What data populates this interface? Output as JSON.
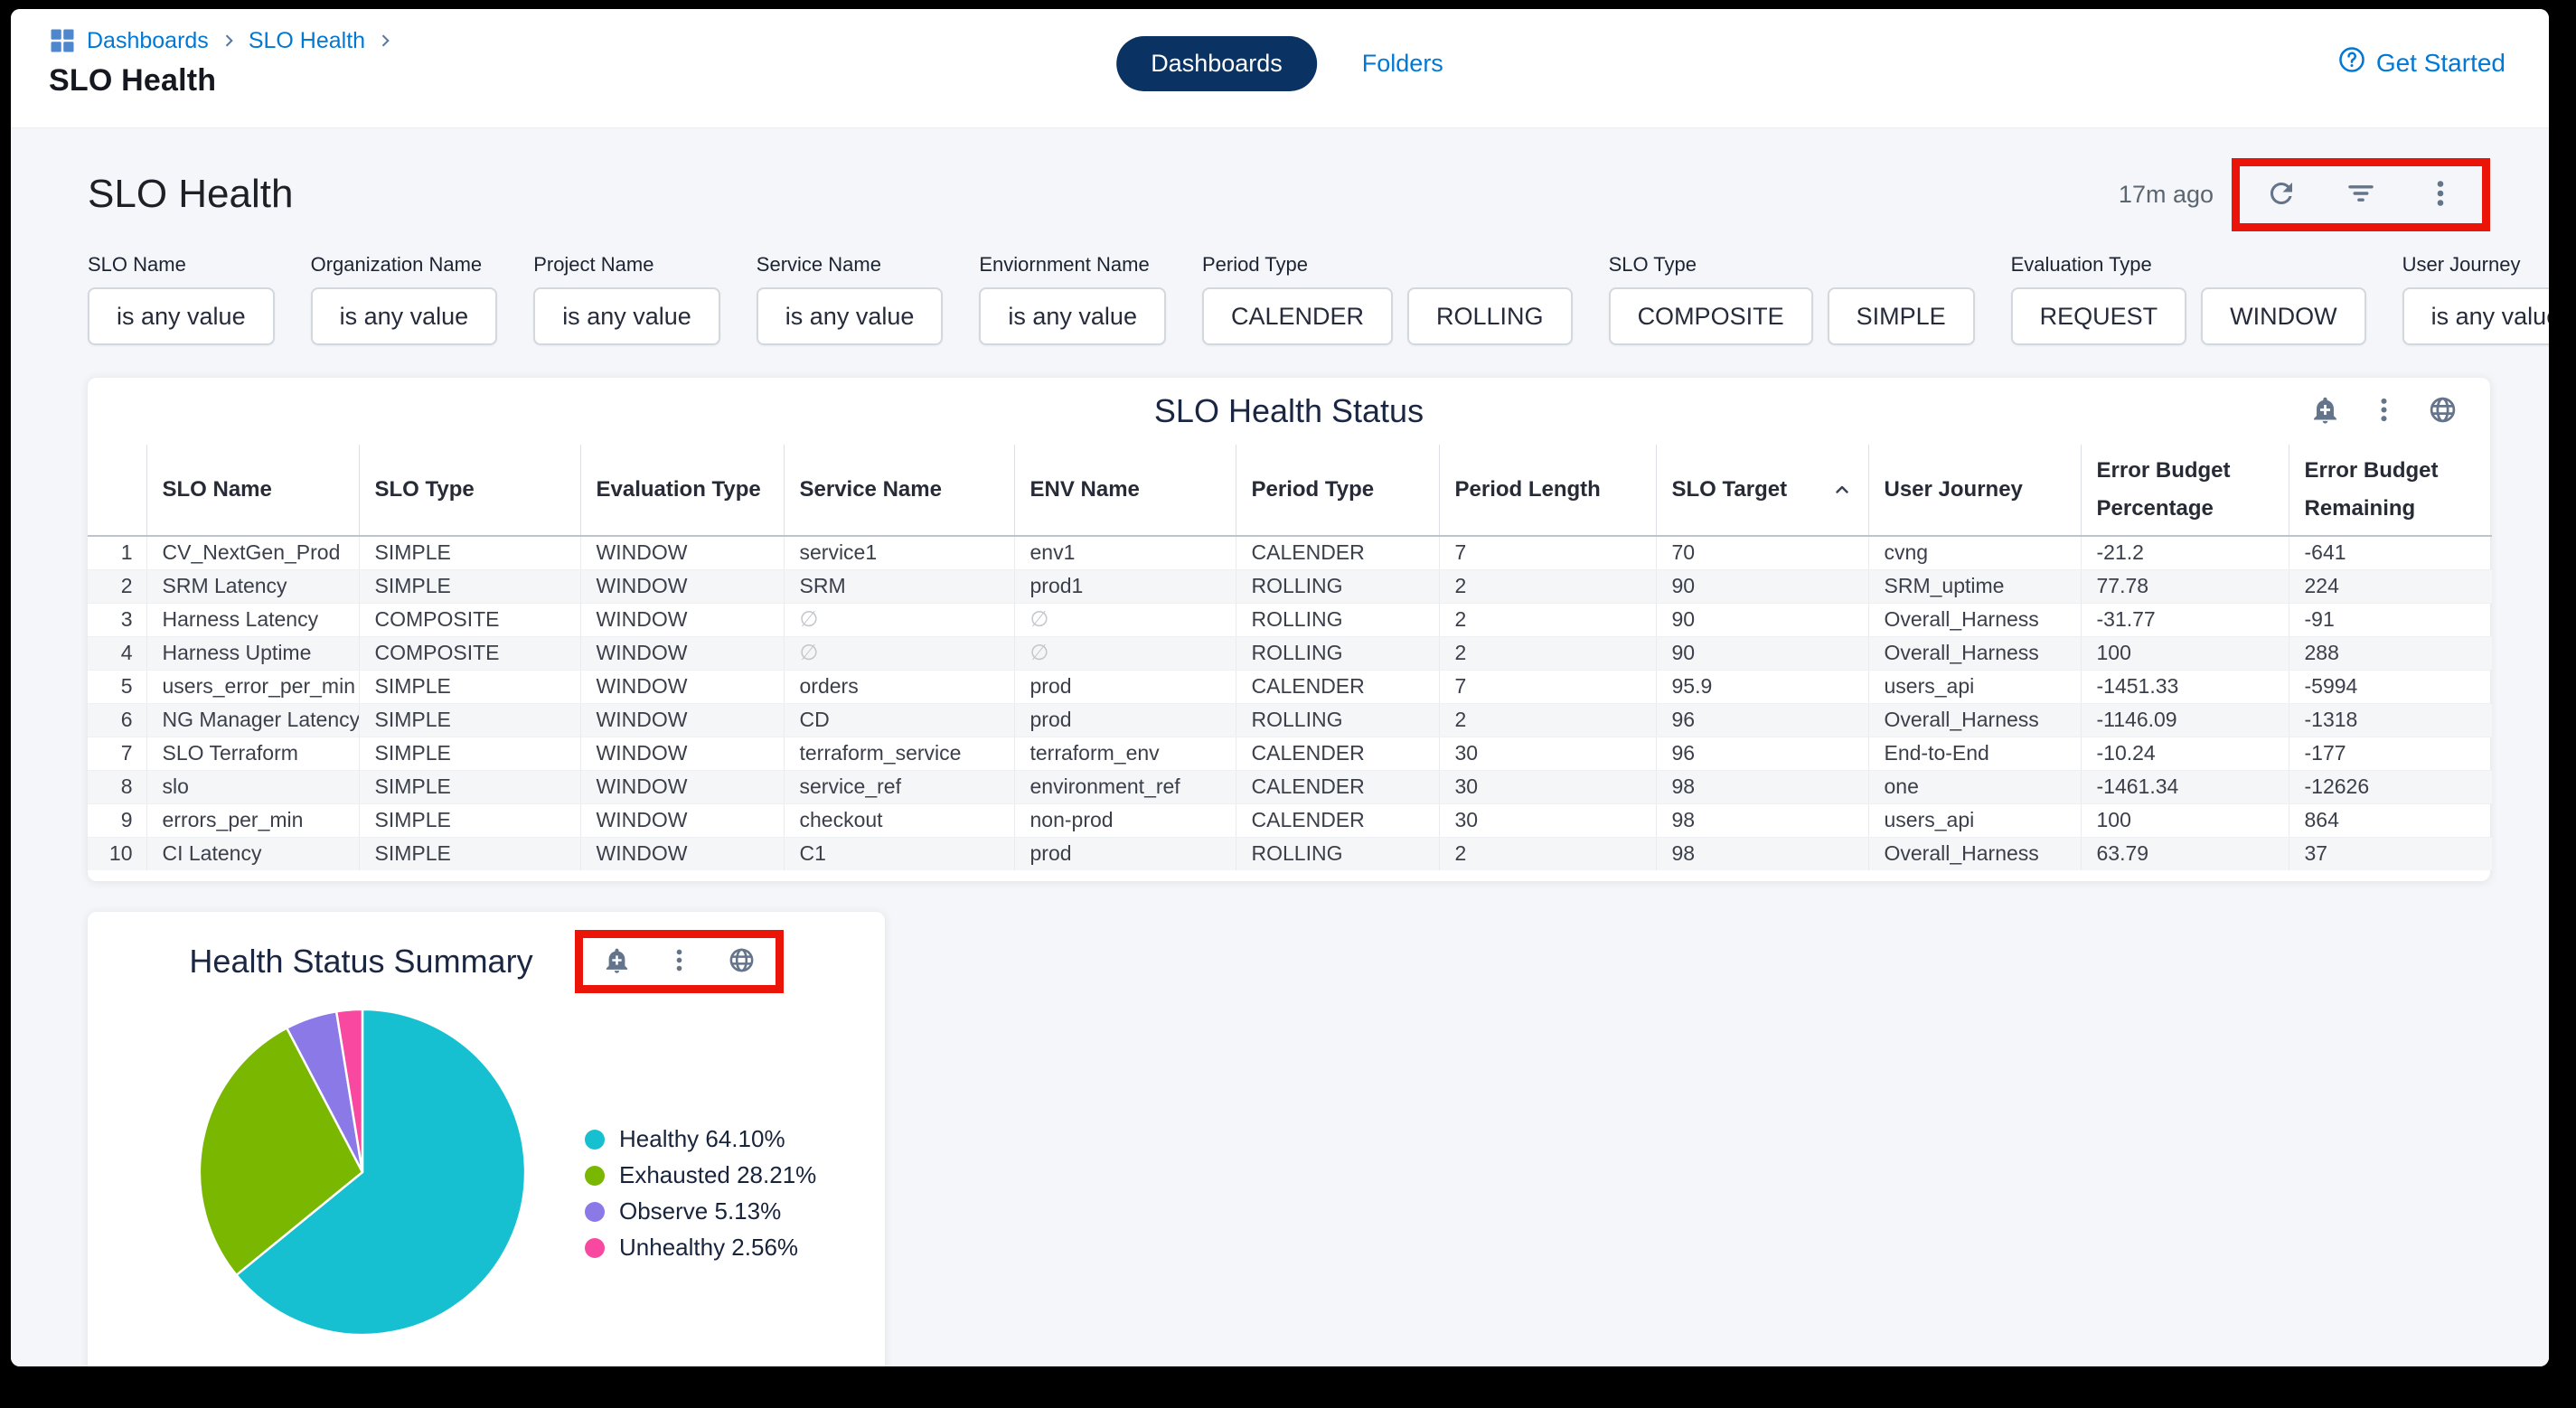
{
  "colors": {
    "accent_blue": "#0278d5",
    "tab_navy": "#0a3364",
    "annotation_red": "#ea1508",
    "icon_gray": "#64748b",
    "page_background": "#f4f6f9"
  },
  "top_bar": {
    "breadcrumb": {
      "items": [
        "Dashboards",
        "SLO Health"
      ]
    },
    "page_title": "SLO Health",
    "tabs": [
      {
        "label": "Dashboards",
        "active": true
      },
      {
        "label": "Folders",
        "active": false
      }
    ],
    "get_started": "Get Started"
  },
  "dashboard": {
    "title": "SLO Health",
    "last_refreshed": "17m ago",
    "toolbar_icons": [
      "refresh-icon",
      "filter-icon",
      "kebab-menu-icon"
    ]
  },
  "filters": [
    {
      "label": "SLO Name",
      "values": [
        "is any value"
      ]
    },
    {
      "label": "Organization Name",
      "values": [
        "is any value"
      ]
    },
    {
      "label": "Project Name",
      "values": [
        "is any value"
      ]
    },
    {
      "label": "Service Name",
      "values": [
        "is any value"
      ]
    },
    {
      "label": "Enviornment Name",
      "values": [
        "is any value"
      ]
    },
    {
      "label": "Period Type",
      "values": [
        "CALENDER",
        "ROLLING"
      ]
    },
    {
      "label": "SLO Type",
      "values": [
        "COMPOSITE",
        "SIMPLE"
      ]
    },
    {
      "label": "Evaluation Type",
      "values": [
        "REQUEST",
        "WINDOW"
      ]
    },
    {
      "label": "User Journey",
      "values": [
        "is any value"
      ]
    }
  ],
  "table": {
    "title": "SLO Health Status",
    "icons": [
      "bell-plus-icon",
      "kebab-menu-icon",
      "globe-icon"
    ],
    "columns": [
      "SLO Name",
      "SLO Type",
      "Evaluation Type",
      "Service Name",
      "ENV Name",
      "Period Type",
      "Period Length",
      "SLO Target",
      "User Journey",
      "Error Budget Percentage",
      "Error Budget Remaining"
    ],
    "sorted_column": "SLO Target",
    "sort_direction": "asc",
    "empty_cell_glyph": "∅",
    "rows": [
      {
        "n": "1",
        "cells": [
          "CV_NextGen_Prod",
          "SIMPLE",
          "WINDOW",
          "service1",
          "env1",
          "CALENDER",
          "7",
          "70",
          "cvng",
          "-21.2",
          "-641"
        ]
      },
      {
        "n": "2",
        "cells": [
          "SRM Latency",
          "SIMPLE",
          "WINDOW",
          "SRM",
          "prod1",
          "ROLLING",
          "2",
          "90",
          "SRM_uptime",
          "77.78",
          "224"
        ]
      },
      {
        "n": "3",
        "cells": [
          "Harness Latency",
          "COMPOSITE",
          "WINDOW",
          null,
          null,
          "ROLLING",
          "2",
          "90",
          "Overall_Harness",
          "-31.77",
          "-91"
        ]
      },
      {
        "n": "4",
        "cells": [
          "Harness Uptime",
          "COMPOSITE",
          "WINDOW",
          null,
          null,
          "ROLLING",
          "2",
          "90",
          "Overall_Harness",
          "100",
          "288"
        ]
      },
      {
        "n": "5",
        "cells": [
          "users_error_per_min",
          "SIMPLE",
          "WINDOW",
          "orders",
          "prod",
          "CALENDER",
          "7",
          "95.9",
          "users_api",
          "-1451.33",
          "-5994"
        ]
      },
      {
        "n": "6",
        "cells": [
          "NG Manager Latency",
          "SIMPLE",
          "WINDOW",
          "CD",
          "prod",
          "ROLLING",
          "2",
          "96",
          "Overall_Harness",
          "-1146.09",
          "-1318"
        ]
      },
      {
        "n": "7",
        "cells": [
          "SLO Terraform",
          "SIMPLE",
          "WINDOW",
          "terraform_service",
          "terraform_env",
          "CALENDER",
          "30",
          "96",
          "End-to-End",
          "-10.24",
          "-177"
        ]
      },
      {
        "n": "8",
        "cells": [
          "slo",
          "SIMPLE",
          "WINDOW",
          "service_ref",
          "environment_ref",
          "CALENDER",
          "30",
          "98",
          "one",
          "-1461.34",
          "-12626"
        ]
      },
      {
        "n": "9",
        "cells": [
          "errors_per_min",
          "SIMPLE",
          "WINDOW",
          "checkout",
          "non-prod",
          "CALENDER",
          "30",
          "98",
          "users_api",
          "100",
          "864"
        ]
      },
      {
        "n": "10",
        "cells": [
          "CI Latency",
          "SIMPLE",
          "WINDOW",
          "C1",
          "prod",
          "ROLLING",
          "2",
          "98",
          "Overall_Harness",
          "63.79",
          "37"
        ]
      }
    ]
  },
  "pie_card": {
    "title": "Health Status Summary",
    "icons": [
      "bell-plus-icon",
      "kebab-menu-icon",
      "globe-icon"
    ]
  },
  "chart_data": {
    "type": "pie",
    "title": "Health Status Summary",
    "labels": [
      "Healthy",
      "Exhausted",
      "Observe",
      "Unhealthy"
    ],
    "values": [
      64.1,
      28.21,
      5.13,
      2.56
    ],
    "colors": [
      "#17c0d1",
      "#79b700",
      "#8b79e8",
      "#f9489f"
    ],
    "legend_labels": [
      "Healthy 64.10%",
      "Exhausted 28.21%",
      "Observe 5.13%",
      "Unhealthy 2.56%"
    ],
    "legend_position": "right",
    "start_angle_deg": 0,
    "direction": "clockwise"
  }
}
